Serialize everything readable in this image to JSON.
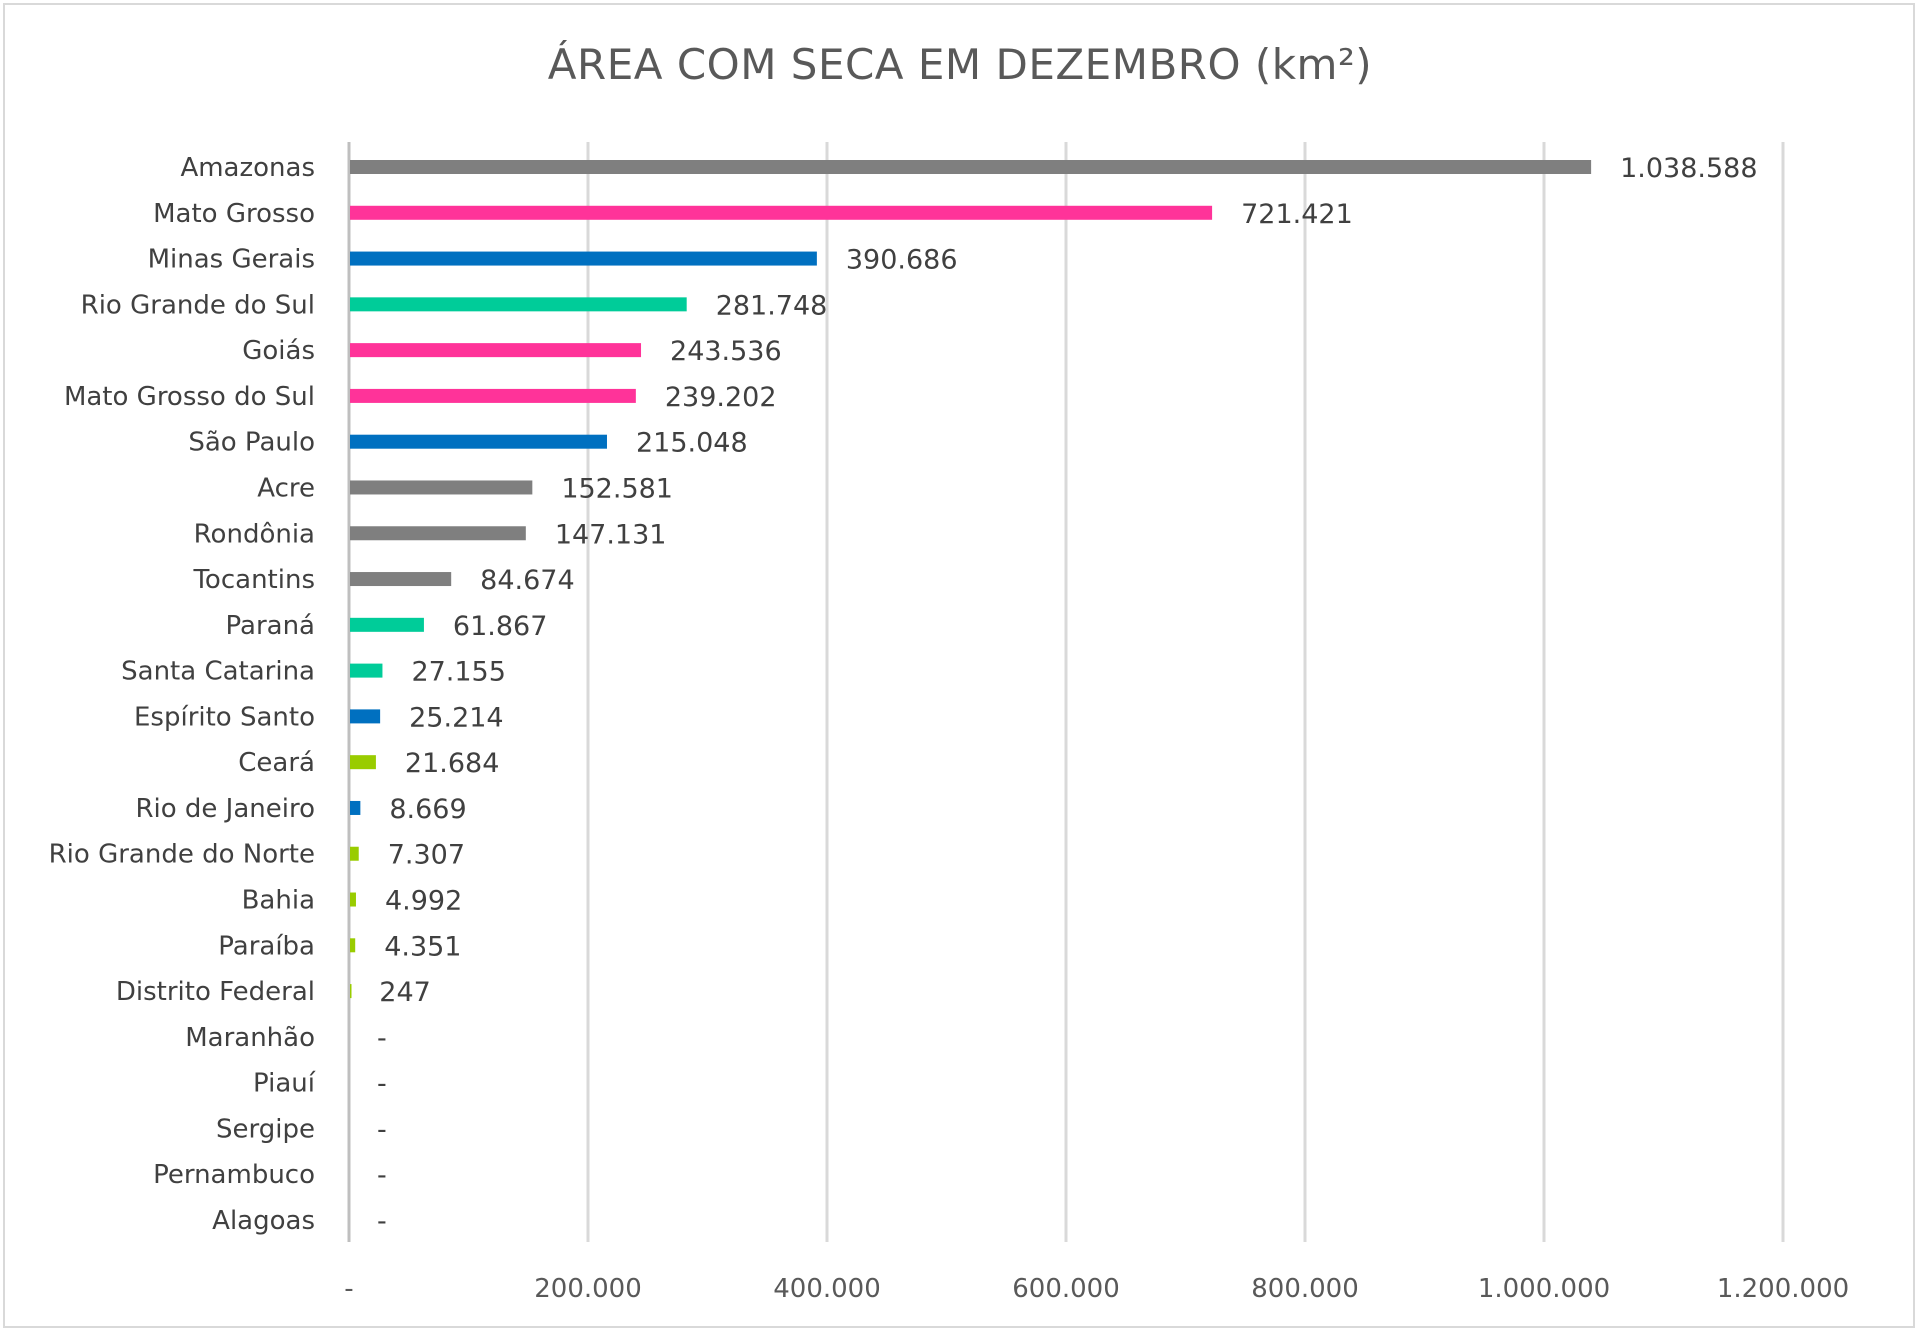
{
  "chart_data": {
    "type": "bar",
    "orientation": "horizontal",
    "title": "ÁREA COM SECA EM DEZEMBRO (km²)",
    "xlabel": "",
    "ylabel": "",
    "xlim": [
      0,
      1200000
    ],
    "grid": true,
    "x_ticks": [
      "-",
      "200.000",
      "400.000",
      "600.000",
      "800.000",
      "1.000.000",
      "1.200.000"
    ],
    "x_tick_values": [
      0,
      200000,
      400000,
      600000,
      800000,
      1000000,
      1200000
    ],
    "categories": [
      "Amazonas",
      "Mato Grosso",
      "Minas Gerais",
      "Rio Grande do Sul",
      "Goiás",
      "Mato Grosso do Sul",
      "São Paulo",
      "Acre",
      "Rondônia",
      "Tocantins",
      "Paraná",
      "Santa Catarina",
      "Espírito Santo",
      "Ceará",
      "Rio de Janeiro",
      "Rio Grande do Norte",
      "Bahia",
      "Paraíba",
      "Distrito Federal",
      "Maranhão",
      "Piauí",
      "Sergipe",
      "Pernambuco",
      "Alagoas"
    ],
    "values": [
      1038588,
      721421,
      390686,
      281748,
      243536,
      239202,
      215048,
      152581,
      147131,
      84674,
      61867,
      27155,
      25214,
      21684,
      8669,
      7307,
      4992,
      4351,
      247,
      0,
      0,
      0,
      0,
      0
    ],
    "data_labels": [
      "1.038.588",
      "721.421",
      "390.686",
      "281.748",
      "243.536",
      "239.202",
      "215.048",
      "152.581",
      "147.131",
      "84.674",
      "61.867",
      "27.155",
      "25.214",
      "21.684",
      "8.669",
      "7.307",
      "4.992",
      "4.351",
      "247",
      "-",
      "-",
      "-",
      "-",
      "-"
    ],
    "bar_colors": [
      "#7f7f7f",
      "#ff3399",
      "#0070c0",
      "#00cc99",
      "#ff3399",
      "#ff3399",
      "#0070c0",
      "#7f7f7f",
      "#7f7f7f",
      "#7f7f7f",
      "#00cc99",
      "#00cc99",
      "#0070c0",
      "#99cc00",
      "#0070c0",
      "#99cc00",
      "#99cc00",
      "#99cc00",
      "#99cc00",
      "#99cc00",
      "#99cc00",
      "#99cc00",
      "#99cc00",
      "#99cc00"
    ]
  }
}
